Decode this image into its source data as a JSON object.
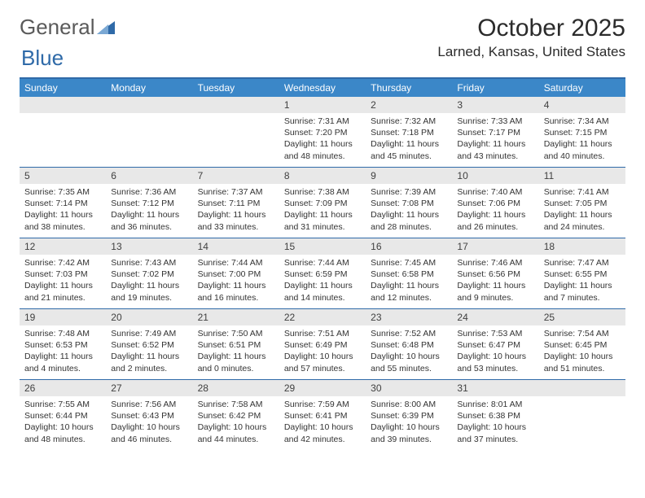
{
  "logo": {
    "part1": "General",
    "part2": "Blue"
  },
  "title": "October 2025",
  "location": "Larned, Kansas, United States",
  "colors": {
    "header_bg": "#3b87c8",
    "border": "#2f6aa8",
    "daynum_bg": "#e8e8e8",
    "text": "#333333",
    "logo_blue": "#2f6aa8"
  },
  "weekdays": [
    "Sunday",
    "Monday",
    "Tuesday",
    "Wednesday",
    "Thursday",
    "Friday",
    "Saturday"
  ],
  "weeks": [
    [
      {
        "num": "",
        "sunrise": "",
        "sunset": "",
        "daylight": ""
      },
      {
        "num": "",
        "sunrise": "",
        "sunset": "",
        "daylight": ""
      },
      {
        "num": "",
        "sunrise": "",
        "sunset": "",
        "daylight": ""
      },
      {
        "num": "1",
        "sunrise": "Sunrise: 7:31 AM",
        "sunset": "Sunset: 7:20 PM",
        "daylight": "Daylight: 11 hours and 48 minutes."
      },
      {
        "num": "2",
        "sunrise": "Sunrise: 7:32 AM",
        "sunset": "Sunset: 7:18 PM",
        "daylight": "Daylight: 11 hours and 45 minutes."
      },
      {
        "num": "3",
        "sunrise": "Sunrise: 7:33 AM",
        "sunset": "Sunset: 7:17 PM",
        "daylight": "Daylight: 11 hours and 43 minutes."
      },
      {
        "num": "4",
        "sunrise": "Sunrise: 7:34 AM",
        "sunset": "Sunset: 7:15 PM",
        "daylight": "Daylight: 11 hours and 40 minutes."
      }
    ],
    [
      {
        "num": "5",
        "sunrise": "Sunrise: 7:35 AM",
        "sunset": "Sunset: 7:14 PM",
        "daylight": "Daylight: 11 hours and 38 minutes."
      },
      {
        "num": "6",
        "sunrise": "Sunrise: 7:36 AM",
        "sunset": "Sunset: 7:12 PM",
        "daylight": "Daylight: 11 hours and 36 minutes."
      },
      {
        "num": "7",
        "sunrise": "Sunrise: 7:37 AM",
        "sunset": "Sunset: 7:11 PM",
        "daylight": "Daylight: 11 hours and 33 minutes."
      },
      {
        "num": "8",
        "sunrise": "Sunrise: 7:38 AM",
        "sunset": "Sunset: 7:09 PM",
        "daylight": "Daylight: 11 hours and 31 minutes."
      },
      {
        "num": "9",
        "sunrise": "Sunrise: 7:39 AM",
        "sunset": "Sunset: 7:08 PM",
        "daylight": "Daylight: 11 hours and 28 minutes."
      },
      {
        "num": "10",
        "sunrise": "Sunrise: 7:40 AM",
        "sunset": "Sunset: 7:06 PM",
        "daylight": "Daylight: 11 hours and 26 minutes."
      },
      {
        "num": "11",
        "sunrise": "Sunrise: 7:41 AM",
        "sunset": "Sunset: 7:05 PM",
        "daylight": "Daylight: 11 hours and 24 minutes."
      }
    ],
    [
      {
        "num": "12",
        "sunrise": "Sunrise: 7:42 AM",
        "sunset": "Sunset: 7:03 PM",
        "daylight": "Daylight: 11 hours and 21 minutes."
      },
      {
        "num": "13",
        "sunrise": "Sunrise: 7:43 AM",
        "sunset": "Sunset: 7:02 PM",
        "daylight": "Daylight: 11 hours and 19 minutes."
      },
      {
        "num": "14",
        "sunrise": "Sunrise: 7:44 AM",
        "sunset": "Sunset: 7:00 PM",
        "daylight": "Daylight: 11 hours and 16 minutes."
      },
      {
        "num": "15",
        "sunrise": "Sunrise: 7:44 AM",
        "sunset": "Sunset: 6:59 PM",
        "daylight": "Daylight: 11 hours and 14 minutes."
      },
      {
        "num": "16",
        "sunrise": "Sunrise: 7:45 AM",
        "sunset": "Sunset: 6:58 PM",
        "daylight": "Daylight: 11 hours and 12 minutes."
      },
      {
        "num": "17",
        "sunrise": "Sunrise: 7:46 AM",
        "sunset": "Sunset: 6:56 PM",
        "daylight": "Daylight: 11 hours and 9 minutes."
      },
      {
        "num": "18",
        "sunrise": "Sunrise: 7:47 AM",
        "sunset": "Sunset: 6:55 PM",
        "daylight": "Daylight: 11 hours and 7 minutes."
      }
    ],
    [
      {
        "num": "19",
        "sunrise": "Sunrise: 7:48 AM",
        "sunset": "Sunset: 6:53 PM",
        "daylight": "Daylight: 11 hours and 4 minutes."
      },
      {
        "num": "20",
        "sunrise": "Sunrise: 7:49 AM",
        "sunset": "Sunset: 6:52 PM",
        "daylight": "Daylight: 11 hours and 2 minutes."
      },
      {
        "num": "21",
        "sunrise": "Sunrise: 7:50 AM",
        "sunset": "Sunset: 6:51 PM",
        "daylight": "Daylight: 11 hours and 0 minutes."
      },
      {
        "num": "22",
        "sunrise": "Sunrise: 7:51 AM",
        "sunset": "Sunset: 6:49 PM",
        "daylight": "Daylight: 10 hours and 57 minutes."
      },
      {
        "num": "23",
        "sunrise": "Sunrise: 7:52 AM",
        "sunset": "Sunset: 6:48 PM",
        "daylight": "Daylight: 10 hours and 55 minutes."
      },
      {
        "num": "24",
        "sunrise": "Sunrise: 7:53 AM",
        "sunset": "Sunset: 6:47 PM",
        "daylight": "Daylight: 10 hours and 53 minutes."
      },
      {
        "num": "25",
        "sunrise": "Sunrise: 7:54 AM",
        "sunset": "Sunset: 6:45 PM",
        "daylight": "Daylight: 10 hours and 51 minutes."
      }
    ],
    [
      {
        "num": "26",
        "sunrise": "Sunrise: 7:55 AM",
        "sunset": "Sunset: 6:44 PM",
        "daylight": "Daylight: 10 hours and 48 minutes."
      },
      {
        "num": "27",
        "sunrise": "Sunrise: 7:56 AM",
        "sunset": "Sunset: 6:43 PM",
        "daylight": "Daylight: 10 hours and 46 minutes."
      },
      {
        "num": "28",
        "sunrise": "Sunrise: 7:58 AM",
        "sunset": "Sunset: 6:42 PM",
        "daylight": "Daylight: 10 hours and 44 minutes."
      },
      {
        "num": "29",
        "sunrise": "Sunrise: 7:59 AM",
        "sunset": "Sunset: 6:41 PM",
        "daylight": "Daylight: 10 hours and 42 minutes."
      },
      {
        "num": "30",
        "sunrise": "Sunrise: 8:00 AM",
        "sunset": "Sunset: 6:39 PM",
        "daylight": "Daylight: 10 hours and 39 minutes."
      },
      {
        "num": "31",
        "sunrise": "Sunrise: 8:01 AM",
        "sunset": "Sunset: 6:38 PM",
        "daylight": "Daylight: 10 hours and 37 minutes."
      },
      {
        "num": "",
        "sunrise": "",
        "sunset": "",
        "daylight": ""
      }
    ]
  ]
}
